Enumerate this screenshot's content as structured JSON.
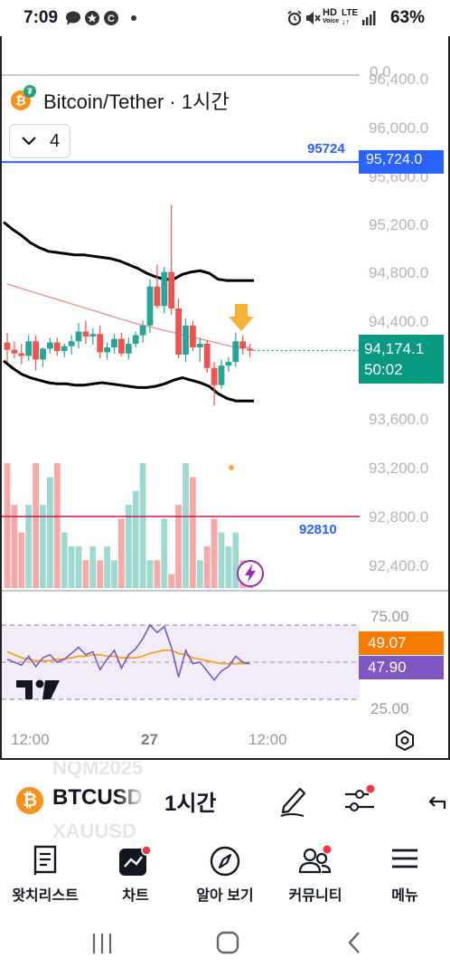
{
  "status_bar": {
    "time": "7:09",
    "icons_left": [
      "chat-bubble-icon",
      "star-badge-icon",
      "c-badge-icon",
      "dot-icon"
    ],
    "icons_right": [
      "alarm-icon",
      "mute-icon",
      "hd-voice-icon",
      "lte-icon",
      "signal-icon"
    ],
    "hd_label": "HD",
    "lte_label": "LTE",
    "battery": "63%"
  },
  "chart": {
    "title": "Bitcoin/Tether · 1시간",
    "indicator_count": "4",
    "price_axis_labels": [
      "96,400.0",
      "96,000.0",
      "95,600.0",
      "95,200.0",
      "94,800.0",
      "94,400.0",
      "93,600.0",
      "93,200.0",
      "92,800.0",
      "92,400.0"
    ],
    "top_partial_label": "0,0",
    "horizontal_line_upper": {
      "tag": "95724",
      "box": "95,724.0",
      "color": "#2962ff"
    },
    "horizontal_line_lower": {
      "tag": "92810",
      "color": "#c2185b"
    },
    "current_price": "94,174.1",
    "countdown": "50:02",
    "rsi_levels": [
      "75.00",
      "25.00"
    ],
    "rsi_value_orange": "49.07",
    "rsi_value_purple": "47.90",
    "time_labels": [
      "12:00",
      "27",
      "12:00"
    ],
    "colors": {
      "up": "#26a69a",
      "down": "#ef5350",
      "rsi": "#7e57c2",
      "ma": "#f7a21b",
      "arrow": "#f9b233"
    }
  },
  "chart_data": {
    "type": "candlestick",
    "title": "Bitcoin/Tether · 1시간",
    "interval": "1시간",
    "y_range": [
      92200,
      96450
    ],
    "candles": [
      {
        "o": 94240,
        "h": 94320,
        "l": 94080,
        "c": 94180
      },
      {
        "o": 94180,
        "h": 94250,
        "l": 94110,
        "c": 94150
      },
      {
        "o": 94150,
        "h": 94230,
        "l": 94060,
        "c": 94130
      },
      {
        "o": 94130,
        "h": 94300,
        "l": 94090,
        "c": 94250
      },
      {
        "o": 94250,
        "h": 94300,
        "l": 94010,
        "c": 94100
      },
      {
        "o": 94100,
        "h": 94200,
        "l": 94040,
        "c": 94190
      },
      {
        "o": 94190,
        "h": 94280,
        "l": 94150,
        "c": 94240
      },
      {
        "o": 94240,
        "h": 94280,
        "l": 94130,
        "c": 94170
      },
      {
        "o": 94170,
        "h": 94230,
        "l": 94120,
        "c": 94210
      },
      {
        "o": 94210,
        "h": 94300,
        "l": 94140,
        "c": 94250
      },
      {
        "o": 94250,
        "h": 94400,
        "l": 94190,
        "c": 94330
      },
      {
        "o": 94330,
        "h": 94420,
        "l": 94230,
        "c": 94290
      },
      {
        "o": 94290,
        "h": 94360,
        "l": 94220,
        "c": 94310
      },
      {
        "o": 94310,
        "h": 94380,
        "l": 94110,
        "c": 94160
      },
      {
        "o": 94160,
        "h": 94240,
        "l": 94100,
        "c": 94200
      },
      {
        "o": 94200,
        "h": 94310,
        "l": 94150,
        "c": 94270
      },
      {
        "o": 94270,
        "h": 94320,
        "l": 94130,
        "c": 94150
      },
      {
        "o": 94150,
        "h": 94280,
        "l": 94100,
        "c": 94230
      },
      {
        "o": 94230,
        "h": 94330,
        "l": 94200,
        "c": 94300
      },
      {
        "o": 94300,
        "h": 94420,
        "l": 94240,
        "c": 94380
      },
      {
        "o": 94380,
        "h": 94760,
        "l": 94320,
        "c": 94700
      },
      {
        "o": 94700,
        "h": 94880,
        "l": 94520,
        "c": 94540
      },
      {
        "o": 94540,
        "h": 94860,
        "l": 94480,
        "c": 94820
      },
      {
        "o": 94820,
        "h": 95370,
        "l": 94470,
        "c": 94520
      },
      {
        "o": 94520,
        "h": 94600,
        "l": 94110,
        "c": 94140
      },
      {
        "o": 94140,
        "h": 94440,
        "l": 94080,
        "c": 94380
      },
      {
        "o": 94380,
        "h": 94420,
        "l": 94170,
        "c": 94200
      },
      {
        "o": 94200,
        "h": 94280,
        "l": 94080,
        "c": 94230
      },
      {
        "o": 94230,
        "h": 94260,
        "l": 93990,
        "c": 94030
      },
      {
        "o": 94030,
        "h": 94080,
        "l": 93720,
        "c": 93890
      },
      {
        "o": 93890,
        "h": 94100,
        "l": 93860,
        "c": 94050
      },
      {
        "o": 94050,
        "h": 94120,
        "l": 94000,
        "c": 94080
      },
      {
        "o": 94080,
        "h": 94320,
        "l": 94040,
        "c": 94250
      },
      {
        "o": 94250,
        "h": 94300,
        "l": 94140,
        "c": 94190
      },
      {
        "o": 94190,
        "h": 94230,
        "l": 94120,
        "c": 94174
      }
    ],
    "volume": [
      9,
      6,
      4,
      6,
      9,
      6,
      8,
      9,
      4,
      3,
      3,
      2,
      3,
      2,
      3,
      2,
      5,
      6,
      7,
      9,
      2,
      2,
      5,
      1,
      6,
      9,
      8,
      2,
      3,
      5,
      4,
      3,
      4,
      2,
      1
    ],
    "rsi": [
      52,
      50,
      48,
      54,
      47,
      53,
      55,
      50,
      52,
      56,
      60,
      55,
      57,
      45,
      52,
      58,
      46,
      55,
      59,
      66,
      75,
      70,
      74,
      60,
      40,
      58,
      49,
      50,
      44,
      38,
      44,
      47,
      54,
      50,
      49
    ],
    "rsi_levels": [
      75,
      25
    ],
    "current_price": 94174.1,
    "horizontal_lines": [
      95724,
      92810
    ]
  },
  "symbol_bar": {
    "symbol": "BTCUSDT",
    "interval": "1시간",
    "ghost_above": "NQM2025",
    "ghost_below": "XAUUSD"
  },
  "nav": {
    "items": [
      {
        "label": "왓치리스트",
        "icon": "list-icon"
      },
      {
        "label": "차트",
        "icon": "chart-icon"
      },
      {
        "label": "알아 보기",
        "icon": "compass-icon"
      },
      {
        "label": "커뮤니티",
        "icon": "community-icon"
      },
      {
        "label": "메뉴",
        "icon": "hamburger-icon"
      }
    ]
  }
}
